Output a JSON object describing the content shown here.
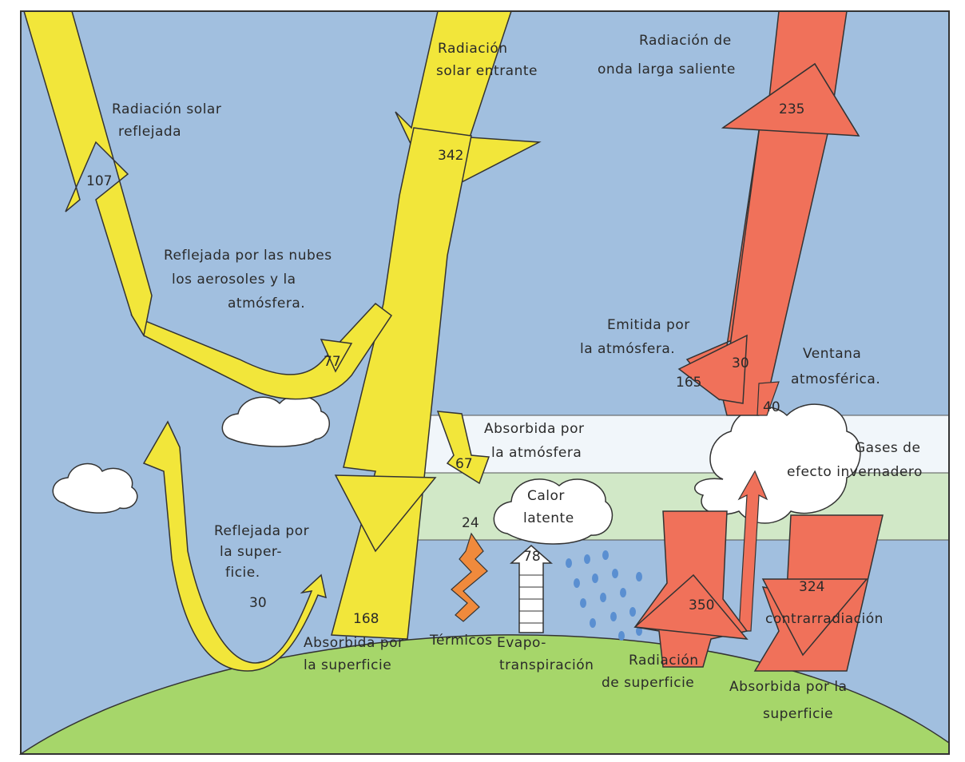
{
  "colors": {
    "sky": "#8fb3d9",
    "sky_light": "#b9cfe6",
    "solar_arrow": "#f2e63a",
    "longwave_arrow": "#f0715a",
    "ground": "#a6d66a",
    "greenhouse_band": "#d6ecc4",
    "cloud": "#ffffff",
    "outline": "#333333"
  },
  "labels": {
    "reflected_solar": [
      "Radiación solar",
      "reflejada"
    ],
    "incoming_solar": [
      "Radiación",
      "solar entrante"
    ],
    "outgoing_longwave": [
      "Radiación de",
      "onda larga saliente"
    ],
    "reflected_clouds": [
      "Reflejada por las nubes",
      "los aerosoles y la",
      "atmósfera."
    ],
    "absorbed_atmosphere": [
      "Absorbida por",
      "la atmósfera"
    ],
    "emitted_atmosphere": [
      "Emitida por",
      "la atmósfera."
    ],
    "atmospheric_window": [
      "Ventana",
      "atmosférica."
    ],
    "greenhouse_gases": [
      "Gases de",
      "efecto invernadero"
    ],
    "latent_heat": [
      "Calor",
      "latente"
    ],
    "reflected_surface": [
      "Reflejada por",
      "la super-",
      "ficie."
    ],
    "absorbed_surface": [
      "Absorbida por",
      "la superficie"
    ],
    "thermals": "Térmicos",
    "evapotranspiration": [
      "Evapo-",
      "transpiración"
    ],
    "surface_radiation": [
      "Radiación",
      "de superficie"
    ],
    "absorbed_surface_2": [
      "Absorbida por la",
      "superficie"
    ],
    "back_radiation": "contrarradiación"
  },
  "values": {
    "reflected_total": "107",
    "incoming": "342",
    "outgoing": "235",
    "reflected_clouds": "77",
    "absorbed_atm": "67",
    "emitted_atm": "165",
    "atm_thirty": "30",
    "window": "40",
    "thermals": "24",
    "evapo": "78",
    "reflected_surface": "30",
    "absorbed_surface": "168",
    "surface_rad": "350",
    "back_rad": "324"
  }
}
